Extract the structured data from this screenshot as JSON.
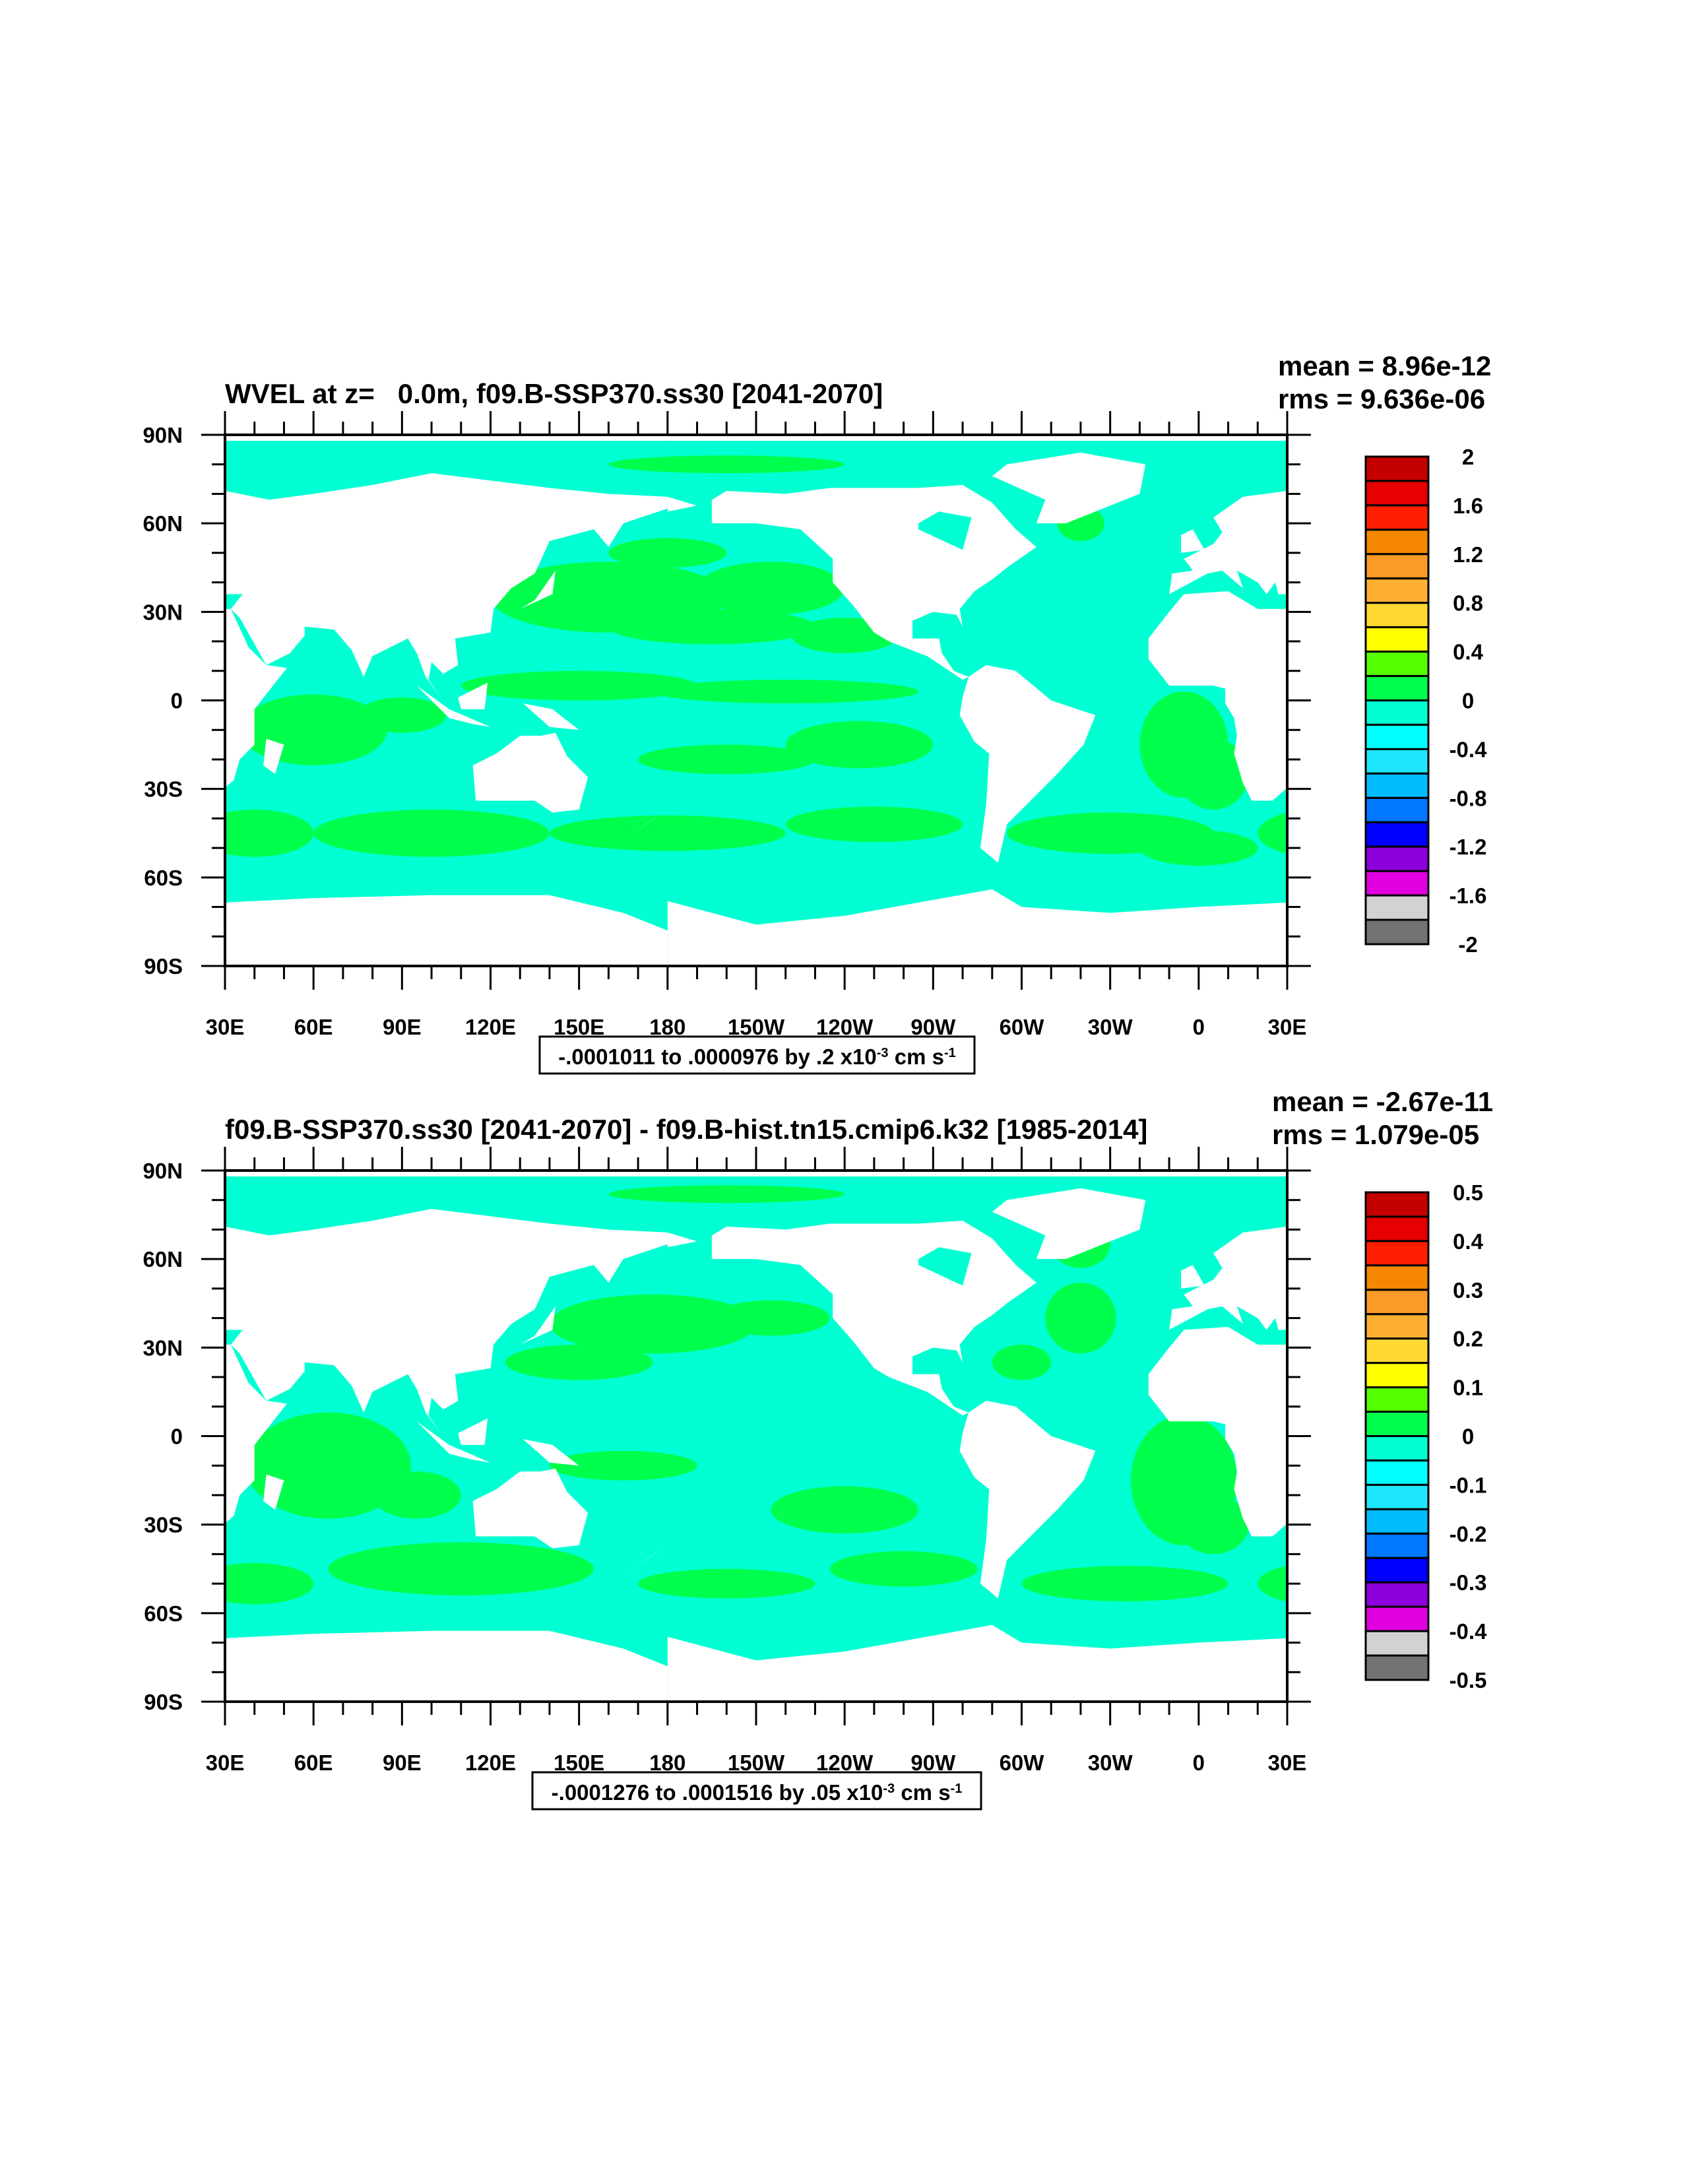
{
  "chart_data": [
    {
      "type": "heatmap",
      "title": "WVEL at z=   0.0m, f09.B-SSP370.ss30 [2041-2070]",
      "stats": {
        "mean": "mean = 8.96e-12",
        "rms": "rms = 9.636e-06"
      },
      "info": {
        "text": "-.0001011 to .0000976 by .2 x10",
        "exp": "-3",
        "unit": " cm s",
        "unit_exp": "-1"
      },
      "x_ticks": [
        "30E",
        "60E",
        "90E",
        "120E",
        "150E",
        "180",
        "150W",
        "120W",
        "90W",
        "60W",
        "30W",
        "0",
        "30E"
      ],
      "y_ticks": [
        "90N",
        "60N",
        "30N",
        "0",
        "30S",
        "60S",
        "90S"
      ],
      "xlim": [
        30,
        390
      ],
      "ylim": [
        -90,
        90
      ],
      "colorbar": {
        "labels": [
          "2",
          "1.6",
          "1.2",
          "0.8",
          "0.4",
          "0",
          "-0.4",
          "-0.8",
          "-1.2",
          "-1.6",
          "-2"
        ],
        "range": [
          -2,
          2
        ]
      },
      "positive_regions": [
        [
          160,
          35,
          40,
          12
        ],
        [
          215,
          38,
          25,
          9
        ],
        [
          195,
          25,
          35,
          6
        ],
        [
          240,
          22,
          18,
          6
        ],
        [
          150,
          5,
          40,
          5
        ],
        [
          220,
          3,
          45,
          4
        ],
        [
          245,
          -15,
          25,
          8
        ],
        [
          200,
          -20,
          30,
          5
        ],
        [
          60,
          -10,
          25,
          12
        ],
        [
          90,
          -5,
          15,
          6
        ],
        [
          355,
          -15,
          15,
          18
        ],
        [
          5,
          -25,
          12,
          12
        ],
        [
          100,
          -45,
          40,
          8
        ],
        [
          180,
          -45,
          40,
          6
        ],
        [
          250,
          -42,
          30,
          6
        ],
        [
          330,
          -45,
          35,
          7
        ],
        [
          40,
          -45,
          20,
          8
        ],
        [
          0,
          -50,
          20,
          6
        ],
        [
          130,
          60,
          15,
          4
        ],
        [
          200,
          80,
          40,
          3
        ],
        [
          320,
          60,
          8,
          6
        ],
        [
          180,
          50,
          20,
          5
        ]
      ]
    },
    {
      "type": "heatmap",
      "title": "f09.B-SSP370.ss30 [2041-2070] - f09.B-hist.tn15.cmip6.k32 [1985-2014]",
      "stats": {
        "mean": "mean = -2.67e-11",
        "rms": "rms = 1.079e-05"
      },
      "info": {
        "text": "-.0001276 to .0001516 by .05 x10",
        "exp": "-3",
        "unit": " cm s",
        "unit_exp": "-1"
      },
      "x_ticks": [
        "30E",
        "60E",
        "90E",
        "120E",
        "150E",
        "180",
        "150W",
        "120W",
        "90W",
        "60W",
        "30W",
        "0",
        "30E"
      ],
      "y_ticks": [
        "90N",
        "60N",
        "30N",
        "0",
        "30S",
        "60S",
        "90S"
      ],
      "xlim": [
        30,
        390
      ],
      "ylim": [
        -90,
        90
      ],
      "colorbar": {
        "labels": [
          "0.5",
          "0.4",
          "0.3",
          "0.2",
          "0.1",
          "0",
          "-0.1",
          "-0.2",
          "-0.3",
          "-0.4",
          "-0.5"
        ],
        "range": [
          -0.5,
          0.5
        ]
      },
      "positive_regions": [
        [
          175,
          38,
          35,
          10
        ],
        [
          150,
          25,
          25,
          6
        ],
        [
          215,
          40,
          20,
          6
        ],
        [
          240,
          -25,
          25,
          8
        ],
        [
          65,
          -10,
          28,
          18
        ],
        [
          95,
          -20,
          15,
          8
        ],
        [
          355,
          -15,
          18,
          22
        ],
        [
          5,
          -30,
          12,
          10
        ],
        [
          320,
          40,
          12,
          12
        ],
        [
          300,
          25,
          10,
          6
        ],
        [
          110,
          -45,
          45,
          9
        ],
        [
          200,
          -50,
          30,
          5
        ],
        [
          260,
          -45,
          25,
          6
        ],
        [
          335,
          -50,
          35,
          6
        ],
        [
          40,
          -50,
          20,
          7
        ],
        [
          130,
          60,
          15,
          5
        ],
        [
          200,
          82,
          40,
          3
        ],
        [
          320,
          65,
          10,
          8
        ],
        [
          165,
          -10,
          25,
          5
        ]
      ]
    }
  ],
  "colors": {
    "ocean": "#00FFD2",
    "positive": "#00FF4C",
    "land": "#FFFFFF",
    "colorbar": [
      "#C40000",
      "#E60000",
      "#FF1E00",
      "#F58800",
      "#FA9A28",
      "#FFB032",
      "#FFD932",
      "#FFFF00",
      "#55FF00",
      "#00FF4C",
      "#00FFD2",
      "#00FFFF",
      "#1EE6FF",
      "#00BCFF",
      "#0078FF",
      "#0000FF",
      "#8C00DC",
      "#E000E0",
      "#D2D2D2",
      "#727272"
    ]
  }
}
